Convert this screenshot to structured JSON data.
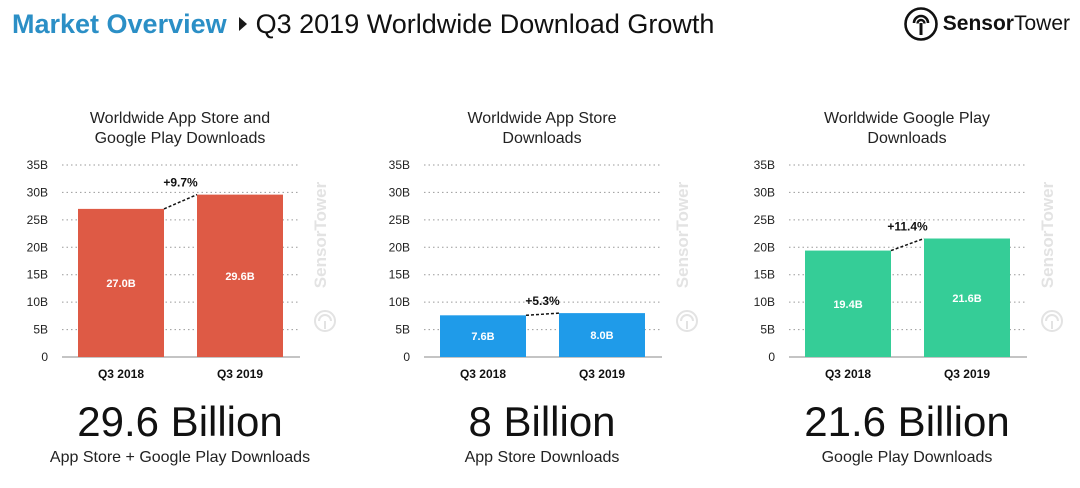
{
  "header": {
    "section": "Market Overview",
    "title": "Q3 2019 Worldwide Download Growth",
    "brand_bold": "Sensor",
    "brand_light": "Tower",
    "watermark": "SensorTower"
  },
  "colors": {
    "accent": "#2b8fc6",
    "red": "#de5a45",
    "blue": "#1f9be9",
    "green": "#35cd97"
  },
  "chart_data": [
    {
      "type": "bar",
      "title_lines": [
        "Worldwide App Store and",
        "Google Play Downloads"
      ],
      "categories": [
        "Q3 2018",
        "Q3 2019"
      ],
      "values": [
        27.0,
        29.6
      ],
      "bar_labels": [
        "27.0B",
        "29.6B"
      ],
      "growth_label": "+9.7%",
      "y_ticks": [
        "0",
        "5B",
        "10B",
        "15B",
        "20B",
        "25B",
        "30B",
        "35B"
      ],
      "ylim": [
        0,
        35
      ],
      "color": "#de5a45",
      "big_number": "29.6 Billion",
      "caption": "App Store + Google Play Downloads"
    },
    {
      "type": "bar",
      "title_lines": [
        "Worldwide App Store",
        "Downloads"
      ],
      "categories": [
        "Q3 2018",
        "Q3 2019"
      ],
      "values": [
        7.6,
        8.0
      ],
      "bar_labels": [
        "7.6B",
        "8.0B"
      ],
      "growth_label": "+5.3%",
      "y_ticks": [
        "0",
        "5B",
        "10B",
        "15B",
        "20B",
        "25B",
        "30B",
        "35B"
      ],
      "ylim": [
        0,
        35
      ],
      "color": "#1f9be9",
      "big_number": "8 Billion",
      "caption": "App Store Downloads"
    },
    {
      "type": "bar",
      "title_lines": [
        "Worldwide Google Play",
        "Downloads"
      ],
      "categories": [
        "Q3 2018",
        "Q3 2019"
      ],
      "values": [
        19.4,
        21.6
      ],
      "bar_labels": [
        "19.4B",
        "21.6B"
      ],
      "growth_label": "+11.4%",
      "y_ticks": [
        "0",
        "5B",
        "10B",
        "15B",
        "20B",
        "25B",
        "30B",
        "35B"
      ],
      "ylim": [
        0,
        35
      ],
      "color": "#35cd97",
      "big_number": "21.6 Billion",
      "caption": "Google Play Downloads"
    }
  ]
}
